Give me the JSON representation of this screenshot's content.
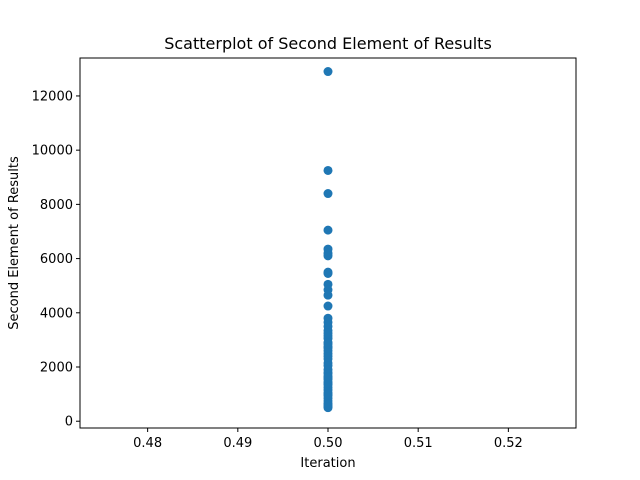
{
  "chart_data": {
    "type": "scatter",
    "title": "Scatterplot of Second Element of Results",
    "xlabel": "Iteration",
    "ylabel": "Second Element of Results",
    "xlim": [
      0.4725,
      0.5275
    ],
    "ylim": [
      -250,
      13400
    ],
    "xticks": [
      0.48,
      0.49,
      0.5,
      0.51,
      0.52
    ],
    "xtick_labels": [
      "0.48",
      "0.49",
      "0.50",
      "0.51",
      "0.52"
    ],
    "yticks": [
      0,
      2000,
      4000,
      6000,
      8000,
      10000,
      12000
    ],
    "ytick_labels": [
      "0",
      "2000",
      "4000",
      "6000",
      "8000",
      "10000",
      "12000"
    ],
    "grid": false,
    "marker_color": "#1f77b4",
    "series": [
      {
        "x": [
          0.5,
          0.5,
          0.5,
          0.5,
          0.5,
          0.5,
          0.5,
          0.5,
          0.5,
          0.5,
          0.5,
          0.5,
          0.5,
          0.5,
          0.5,
          0.5,
          0.5,
          0.5,
          0.5,
          0.5,
          0.5,
          0.5,
          0.5,
          0.5,
          0.5,
          0.5,
          0.5,
          0.5,
          0.5,
          0.5,
          0.5,
          0.5,
          0.5,
          0.5,
          0.5,
          0.5,
          0.5,
          0.5,
          0.5,
          0.5,
          0.5,
          0.5,
          0.5,
          0.5,
          0.5,
          0.5,
          0.5,
          0.5,
          0.5,
          0.5
        ],
        "y": [
          12900,
          9250,
          8400,
          7050,
          6350,
          6200,
          6100,
          5500,
          5450,
          5050,
          4850,
          4650,
          4250,
          3800,
          3650,
          3500,
          3350,
          3150,
          3050,
          2900,
          2750,
          2600,
          2500,
          2400,
          2300,
          2150,
          2050,
          1900,
          1800,
          1750,
          1650,
          1550,
          1450,
          1350,
          1250,
          1150,
          1050,
          950,
          850,
          750,
          650,
          550,
          500,
          1600,
          2700,
          3250,
          1000,
          1400,
          2850,
          600
        ]
      }
    ]
  }
}
